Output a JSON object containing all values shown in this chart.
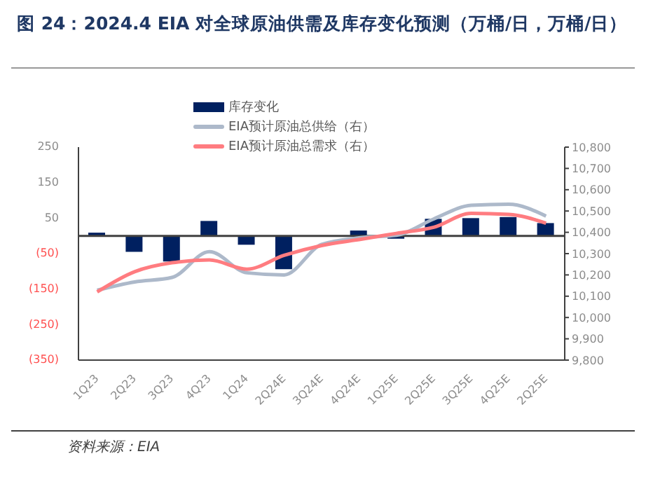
{
  "chart_data": {
    "type": "bar",
    "title": "图 24：2024.4 EIA 对全球原油供需及库存变化预测（万桶/日，万桶/日）",
    "annotations": [
      "资料来源：EIA"
    ],
    "categories": [
      "1Q23",
      "2Q23",
      "3Q23",
      "4Q23",
      "1Q24",
      "2Q24E",
      "3Q24E",
      "4Q24E",
      "1Q25E",
      "2Q25E",
      "3Q25E",
      "4Q25E",
      "2Q25E"
    ],
    "series": [
      {
        "name": "库存变化",
        "color": "#002060",
        "values": [
          9,
          -45,
          -72,
          42,
          -25,
          -94,
          null,
          15,
          -8,
          48,
          50,
          53,
          36
        ]
      },
      {
        "name": "EIA预计原油总供给（右）",
        "type": "line",
        "axis": "y2",
        "color": "#adb9ca",
        "values": [
          10128,
          10167,
          10188,
          10309,
          10210,
          10200,
          10343,
          10374,
          10386,
          10463,
          10527,
          10532,
          10476
        ]
      },
      {
        "name": "EIA预计原油总需求（右）",
        "type": "line",
        "axis": "y2",
        "color": "#ff7c80",
        "values": [
          10120,
          10215,
          10257,
          10270,
          10227,
          10292,
          10338,
          10366,
          10395,
          10424,
          10489,
          10484,
          10443
        ]
      }
    ],
    "ylim": [
      -350,
      250
    ],
    "yticks": [
      250,
      150,
      50,
      {
        "value": -50,
        "label": "(50)"
      },
      {
        "value": -150,
        "label": "(150)"
      },
      {
        "value": -250,
        "label": "(250)"
      },
      {
        "value": -350,
        "label": "(350)"
      }
    ],
    "y2lim": [
      9800,
      10800
    ],
    "y2ticks": [
      {
        "value": 9800,
        "label": "9,800"
      },
      {
        "value": 9900,
        "label": "9,900"
      },
      {
        "value": 10000,
        "label": "10,000"
      },
      {
        "value": 10100,
        "label": "10,100"
      },
      {
        "value": 10200,
        "label": "10,200"
      },
      {
        "value": 10300,
        "label": "10,300"
      },
      {
        "value": 10400,
        "label": "10,400"
      },
      {
        "value": 10500,
        "label": "10,500"
      },
      {
        "value": 10600,
        "label": "10,600"
      },
      {
        "value": 10700,
        "label": "10,700"
      },
      {
        "value": 10800,
        "label": "10,800"
      }
    ],
    "legend": "top",
    "grid": false,
    "marker": "none",
    "line_style": "solid"
  }
}
